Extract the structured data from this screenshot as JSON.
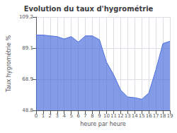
{
  "chart_data": {
    "type": "area",
    "title": "Evolution du taux d'hygrométrie",
    "xlabel": "heure par heure",
    "ylabel": "Taux hygrométrie %",
    "x": [
      0,
      1,
      2,
      3,
      4,
      5,
      6,
      7,
      8,
      9,
      10,
      11,
      12,
      13,
      14,
      15,
      16,
      17,
      18,
      19
    ],
    "values": [
      97.5,
      97.5,
      97.0,
      96.5,
      95.0,
      96.5,
      93.0,
      97.0,
      97.0,
      94.5,
      80.0,
      72.0,
      62.0,
      57.5,
      57.0,
      56.0,
      60.0,
      75.0,
      92.0,
      93.5
    ],
    "xlim": [
      0,
      19
    ],
    "xticks": [
      0,
      1,
      2,
      3,
      4,
      5,
      6,
      7,
      8,
      9,
      10,
      11,
      12,
      13,
      14,
      15,
      16,
      17,
      18,
      19
    ],
    "ylim": [
      48.8,
      109.2
    ],
    "yticks": [
      48.8,
      68.9,
      89.1,
      109.2
    ],
    "grid": true
  }
}
